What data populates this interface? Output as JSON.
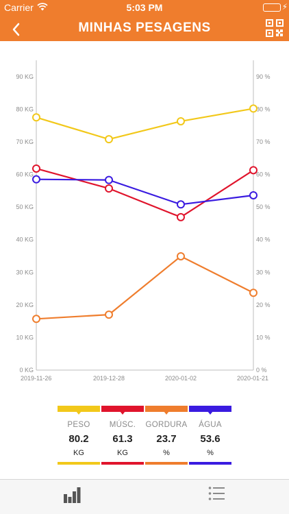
{
  "status_bar": {
    "carrier": "Carrier",
    "time": "5:03 PM",
    "battery_color": "#3ad24a"
  },
  "nav": {
    "back_icon": "chevron-left-icon",
    "title": "MINHAS PESAGENS",
    "qr_icon": "qr-code-icon"
  },
  "colors": {
    "brand": "#ef7d2d",
    "peso": "#f2c81a",
    "musc": "#e0142c",
    "gordura": "#ef7d2d",
    "agua": "#3a1be0"
  },
  "chart_data": {
    "type": "line",
    "categories": [
      "2019-11-26",
      "2019-12-28",
      "2020-01-02",
      "2020-01-21"
    ],
    "y_left": {
      "ticks": [
        "0 KG",
        "10 KG",
        "20 KG",
        "30 KG",
        "40 KG",
        "50 KG",
        "60 KG",
        "70 KG",
        "80 KG",
        "90 KG"
      ],
      "range": [
        0,
        95
      ]
    },
    "y_right": {
      "ticks": [
        "0 %",
        "10 %",
        "20 %",
        "30 %",
        "40 %",
        "50 %",
        "60 %",
        "70 %",
        "80 %",
        "90 %"
      ],
      "range": [
        0,
        95
      ]
    },
    "grid": false,
    "series": [
      {
        "name": "PESO",
        "color": "#f2c81a",
        "axis": "left",
        "values": [
          77.5,
          70.8,
          76.3,
          80.2
        ]
      },
      {
        "name": "MÚSC.",
        "color": "#e0142c",
        "axis": "left",
        "values": [
          61.8,
          55.7,
          46.9,
          61.3
        ]
      },
      {
        "name": "GORDURA",
        "color": "#ef7d2d",
        "axis": "right",
        "values": [
          15.7,
          17.0,
          34.9,
          23.7
        ]
      },
      {
        "name": "ÁGUA",
        "color": "#3a1be0",
        "axis": "right",
        "values": [
          58.5,
          58.3,
          50.8,
          53.6
        ]
      }
    ]
  },
  "legend": [
    {
      "name": "PESO",
      "value": "80.2",
      "unit": "KG",
      "color": "#f2c81a"
    },
    {
      "name": "MÚSC.",
      "value": "61.3",
      "unit": "KG",
      "color": "#e0142c"
    },
    {
      "name": "GORDURA",
      "value": "23.7",
      "unit": "%",
      "color": "#ef7d2d"
    },
    {
      "name": "ÁGUA",
      "value": "53.6",
      "unit": "%",
      "color": "#3a1be0"
    }
  ],
  "tab_bar": {
    "tabs": [
      {
        "icon": "bar-chart-icon",
        "active": true
      },
      {
        "icon": "list-icon",
        "active": false
      }
    ]
  }
}
